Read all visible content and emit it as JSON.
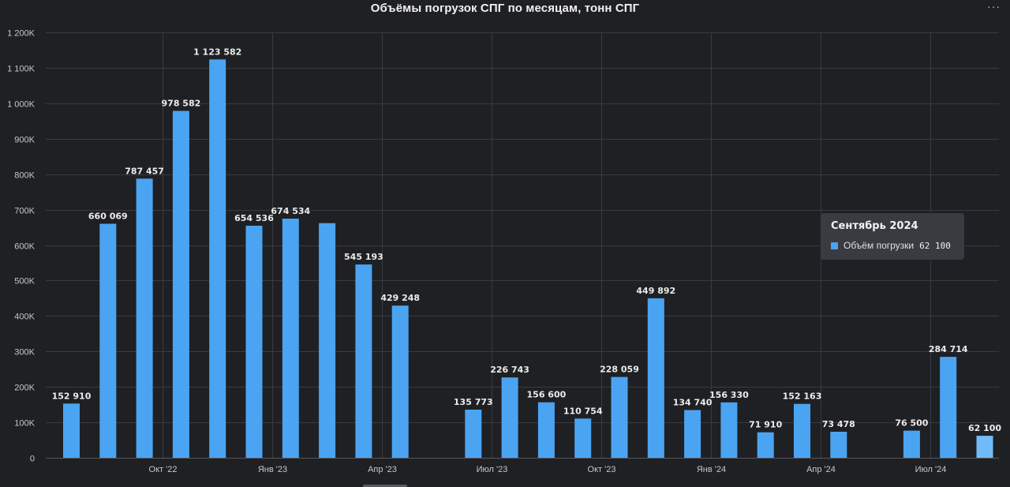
{
  "menu_label": "···",
  "tooltip": {
    "title": "Сентябрь 2024",
    "series": "Объём погрузки",
    "value": "62 100",
    "swatch_color": "#4ba4f2"
  },
  "chart_data": {
    "type": "bar",
    "title": "Объёмы погрузок СПГ по месяцам, тонн СПГ",
    "xlabel": "",
    "ylabel": "",
    "ylim": [
      0,
      1200000
    ],
    "yticks": [
      {
        "value": 0,
        "label": "0"
      },
      {
        "value": 100000,
        "label": "100K"
      },
      {
        "value": 200000,
        "label": "200K"
      },
      {
        "value": 300000,
        "label": "300K"
      },
      {
        "value": 400000,
        "label": "400K"
      },
      {
        "value": 500000,
        "label": "500K"
      },
      {
        "value": 600000,
        "label": "600K"
      },
      {
        "value": 700000,
        "label": "700K"
      },
      {
        "value": 800000,
        "label": "800K"
      },
      {
        "value": 900000,
        "label": "900K"
      },
      {
        "value": 1000000,
        "label": "1 000K"
      },
      {
        "value": 1100000,
        "label": "1 100K"
      },
      {
        "value": 1200000,
        "label": "1 200K"
      }
    ],
    "grid": true,
    "bar_color": "#4ba4f2",
    "highlight_color": "#6fbcf8",
    "highlight_index": 25,
    "xticks": [
      {
        "label": "Окт '22",
        "boundary": 2
      },
      {
        "label": "Янв '23",
        "boundary": 5
      },
      {
        "label": "Апр '23",
        "boundary": 8
      },
      {
        "label": "Июл '23",
        "boundary": 11
      },
      {
        "label": "Окт '23",
        "boundary": 14
      },
      {
        "label": "Янв '24",
        "boundary": 17
      },
      {
        "label": "Апр '24",
        "boundary": 20
      },
      {
        "label": "Июл '24",
        "boundary": 23
      }
    ],
    "bars": [
      {
        "value": 152910,
        "label": "152 910"
      },
      {
        "value": 660069,
        "label": "660 069"
      },
      {
        "value": 787457,
        "label": "787 457"
      },
      {
        "value": 978582,
        "label": "978 582"
      },
      {
        "value": 1123582,
        "label": "1 123 582"
      },
      {
        "value": 654536,
        "label": "654 536"
      },
      {
        "value": 674534,
        "label": "674 534"
      },
      {
        "value": 662000,
        "label": ""
      },
      {
        "value": 545193,
        "label": "545 193"
      },
      {
        "value": 429248,
        "label": "429 248"
      },
      {
        "value": null,
        "label": ""
      },
      {
        "value": 135773,
        "label": "135 773"
      },
      {
        "value": 226743,
        "label": "226 743"
      },
      {
        "value": 156600,
        "label": "156 600"
      },
      {
        "value": 110754,
        "label": "110 754"
      },
      {
        "value": 228059,
        "label": "228 059"
      },
      {
        "value": 449892,
        "label": "449 892"
      },
      {
        "value": 134740,
        "label": "134 740"
      },
      {
        "value": 156330,
        "label": "156 330"
      },
      {
        "value": 71910,
        "label": "71 910"
      },
      {
        "value": 152163,
        "label": "152 163"
      },
      {
        "value": 73478,
        "label": "73 478"
      },
      {
        "value": null,
        "label": ""
      },
      {
        "value": 76500,
        "label": "76 500"
      },
      {
        "value": 284714,
        "label": "284 714"
      },
      {
        "value": 62100,
        "label": "62 100"
      }
    ]
  }
}
